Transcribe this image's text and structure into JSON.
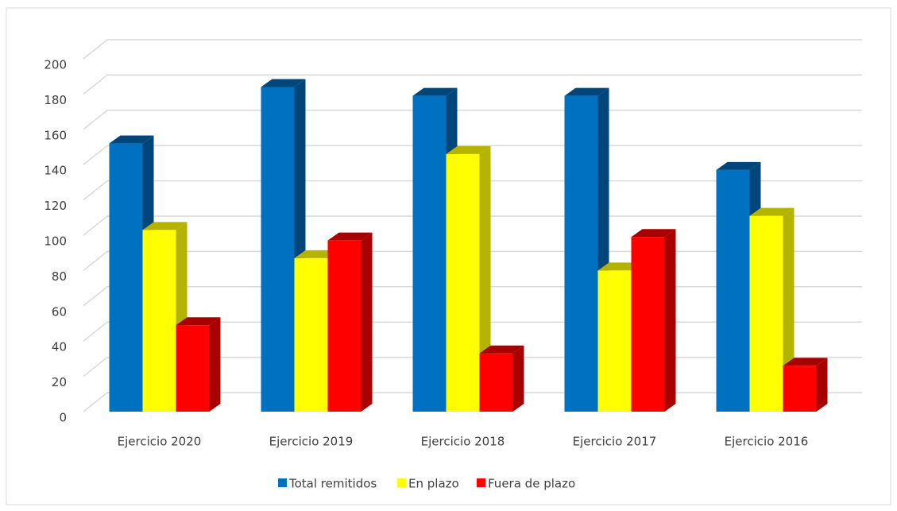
{
  "chart_data": {
    "type": "bar3d",
    "categories": [
      "Ejercicio 2020",
      "Ejercicio 2019",
      "Ejercicio 2018",
      "Ejercicio 2017",
      "Ejercicio 2016"
    ],
    "series": [
      {
        "name": "Total remitidos",
        "color": "#0070c0",
        "side": "#00467a",
        "values": [
          152,
          184,
          179,
          179,
          137
        ]
      },
      {
        "name": "En plazo",
        "color": "#ffff00",
        "side": "#b3b300",
        "values": [
          103,
          87,
          146,
          80,
          111
        ]
      },
      {
        "name": "Fuera de plazo",
        "color": "#ff0000",
        "side": "#a80000",
        "values": [
          49,
          97,
          33,
          99,
          26
        ]
      }
    ],
    "ylim": [
      0,
      200
    ],
    "yticks": [
      0,
      20,
      40,
      60,
      80,
      100,
      120,
      140,
      160,
      180,
      200
    ],
    "grid": true,
    "legend": "bottom"
  }
}
